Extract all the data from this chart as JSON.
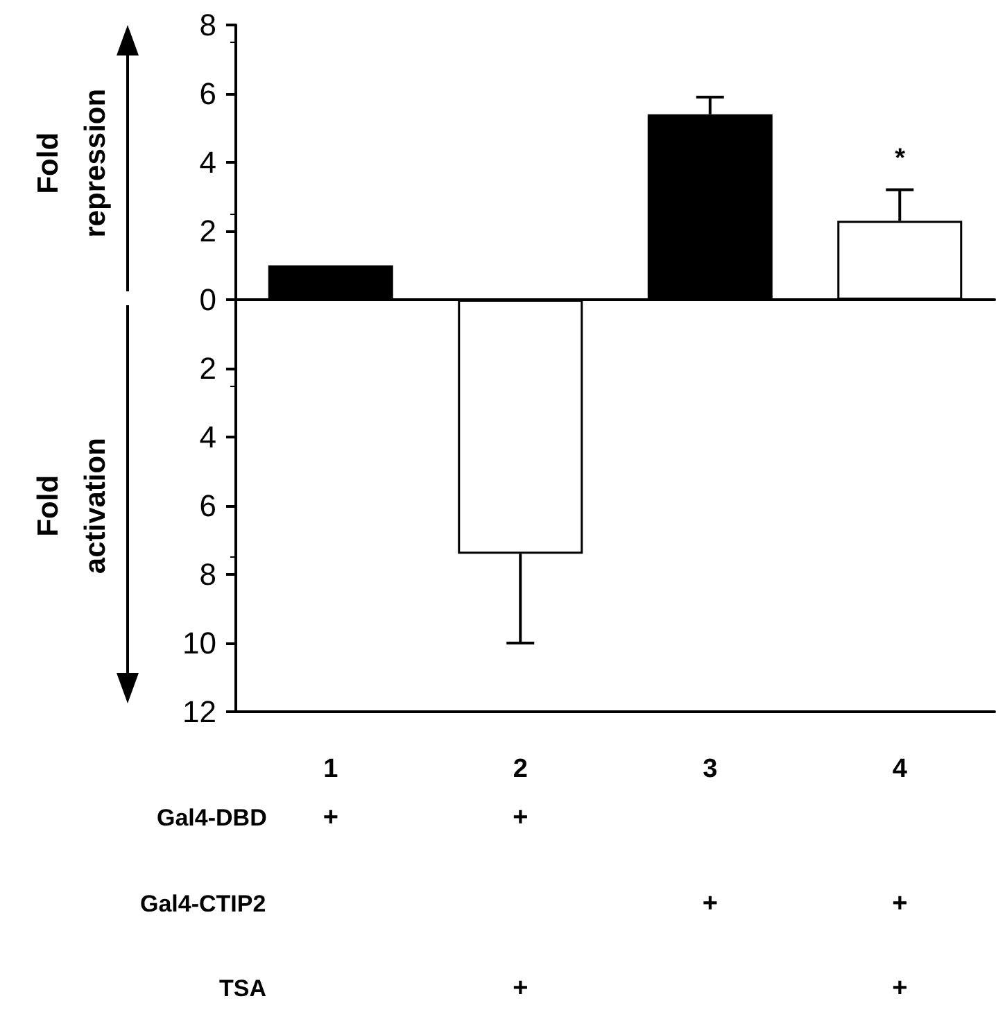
{
  "chart_data": {
    "type": "bar",
    "categories": [
      "1",
      "2",
      "3",
      "4"
    ],
    "values": [
      1,
      -7.4,
      5.4,
      2.3
    ],
    "colors": [
      "#000000",
      "#ffffff",
      "#000000",
      "#ffffff"
    ],
    "errors": [
      null,
      [
        -10,
        -7.4
      ],
      [
        5.4,
        5.9
      ],
      [
        2.3,
        3.2
      ]
    ],
    "ylim": [
      -12,
      8
    ],
    "yticks": [
      {
        "value": -12,
        "label": "12"
      },
      {
        "value": -10,
        "label": "10"
      },
      {
        "value": -8,
        "label": "8"
      },
      {
        "value": -6,
        "label": "6"
      },
      {
        "value": -4,
        "label": "4"
      },
      {
        "value": -2,
        "label": "2"
      },
      0,
      2,
      4,
      6,
      8
    ],
    "annotations": [
      "Fold repression",
      "Fold activation",
      "*",
      "Gal4-DBD",
      "+",
      "+",
      "Gal4-CTIP2",
      "+",
      "+",
      "TSA",
      "+",
      "+"
    ]
  }
}
